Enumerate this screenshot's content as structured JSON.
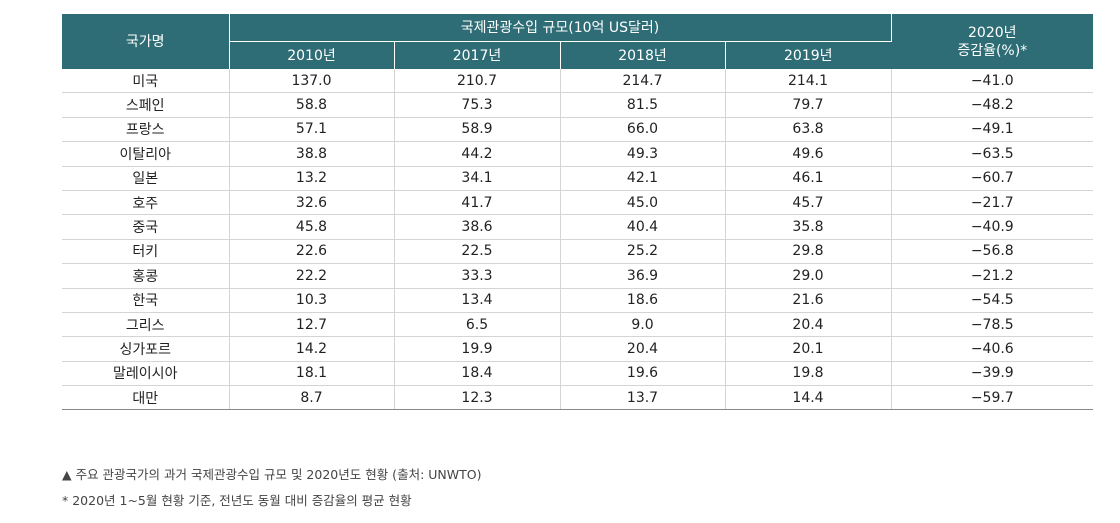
{
  "table": {
    "header": {
      "country": "국가명",
      "group": "국제관광수입 규모(10억 US달러)",
      "years": [
        "2010년",
        "2017년",
        "2018년",
        "2019년"
      ],
      "change_line1": "2020년",
      "change_line2": "증감율(%)*"
    },
    "rows": [
      {
        "country": "미국",
        "y2010": "137.0",
        "y2017": "210.7",
        "y2018": "214.7",
        "y2019": "214.1",
        "change": "−41.0"
      },
      {
        "country": "스페인",
        "y2010": "58.8",
        "y2017": "75.3",
        "y2018": "81.5",
        "y2019": "79.7",
        "change": "−48.2"
      },
      {
        "country": "프랑스",
        "y2010": "57.1",
        "y2017": "58.9",
        "y2018": "66.0",
        "y2019": "63.8",
        "change": "−49.1"
      },
      {
        "country": "이탈리아",
        "y2010": "38.8",
        "y2017": "44.2",
        "y2018": "49.3",
        "y2019": "49.6",
        "change": "−63.5"
      },
      {
        "country": "일본",
        "y2010": "13.2",
        "y2017": "34.1",
        "y2018": "42.1",
        "y2019": "46.1",
        "change": "−60.7"
      },
      {
        "country": "호주",
        "y2010": "32.6",
        "y2017": "41.7",
        "y2018": "45.0",
        "y2019": "45.7",
        "change": "−21.7"
      },
      {
        "country": "중국",
        "y2010": "45.8",
        "y2017": "38.6",
        "y2018": "40.4",
        "y2019": "35.8",
        "change": "−40.9"
      },
      {
        "country": "터키",
        "y2010": "22.6",
        "y2017": "22.5",
        "y2018": "25.2",
        "y2019": "29.8",
        "change": "−56.8"
      },
      {
        "country": "홍콩",
        "y2010": "22.2",
        "y2017": "33.3",
        "y2018": "36.9",
        "y2019": "29.0",
        "change": "−21.2"
      },
      {
        "country": "한국",
        "y2010": "10.3",
        "y2017": "13.4",
        "y2018": "18.6",
        "y2019": "21.6",
        "change": "−54.5"
      },
      {
        "country": "그리스",
        "y2010": "12.7",
        "y2017": "6.5",
        "y2018": "9.0",
        "y2019": "20.4",
        "change": "−78.5"
      },
      {
        "country": "싱가포르",
        "y2010": "14.2",
        "y2017": "19.9",
        "y2018": "20.4",
        "y2019": "20.1",
        "change": "−40.6"
      },
      {
        "country": "말레이시아",
        "y2010": "18.1",
        "y2017": "18.4",
        "y2018": "19.6",
        "y2019": "19.8",
        "change": "−39.9"
      },
      {
        "country": "대만",
        "y2010": "8.7",
        "y2017": "12.3",
        "y2018": "13.7",
        "y2019": "14.4",
        "change": "−59.7"
      }
    ]
  },
  "notes": {
    "caption": "▲ 주요 관광국가의 과거 국제관광수입 규모 및 2020년도 현황 (출처: UNWTO)",
    "footnote": "* 2020년 1~5월 현황 기준, 전년도 동월 대비 증감율의 평균 현황"
  },
  "colors": {
    "header_bg": "#2e6d76",
    "header_text": "#ffffff",
    "row_border": "#d4d4d4"
  }
}
